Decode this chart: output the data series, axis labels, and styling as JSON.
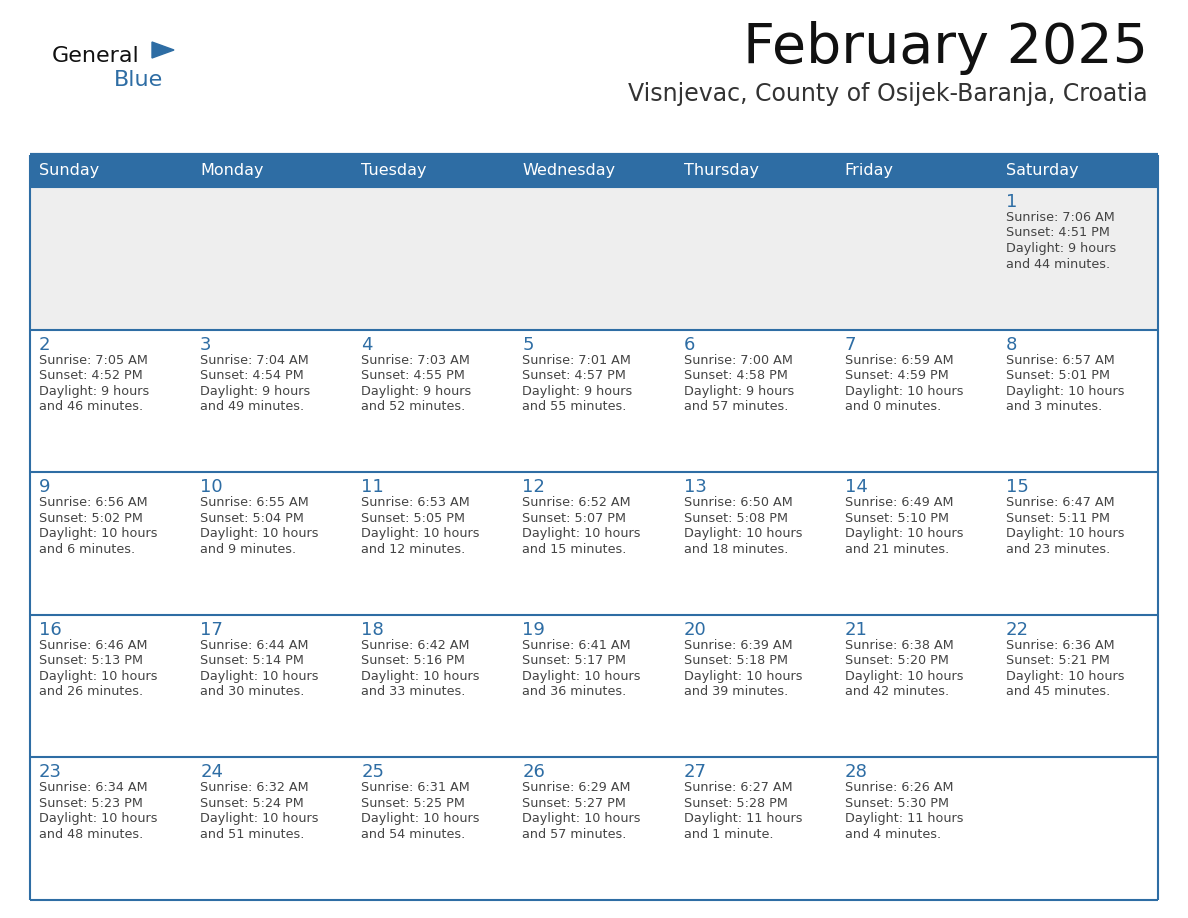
{
  "title": "February 2025",
  "subtitle": "Visnjevac, County of Osijek-Baranja, Croatia",
  "header_bg_color": "#2E6DA4",
  "header_text_color": "#FFFFFF",
  "row0_bg_color": "#EEEEEE",
  "row_bg_color": "#FFFFFF",
  "border_color": "#2E6DA4",
  "day_names": [
    "Sunday",
    "Monday",
    "Tuesday",
    "Wednesday",
    "Thursday",
    "Friday",
    "Saturday"
  ],
  "title_color": "#111111",
  "subtitle_color": "#333333",
  "day_number_color": "#2E6DA4",
  "info_color": "#444444",
  "logo_general_color": "#111111",
  "logo_blue_color": "#2E6DA4",
  "calendar": [
    [
      null,
      null,
      null,
      null,
      null,
      null,
      {
        "day": 1,
        "sunrise": "7:06 AM",
        "sunset": "4:51 PM",
        "daylight": "9 hours",
        "daylight2": "and 44 minutes."
      }
    ],
    [
      {
        "day": 2,
        "sunrise": "7:05 AM",
        "sunset": "4:52 PM",
        "daylight": "9 hours",
        "daylight2": "and 46 minutes."
      },
      {
        "day": 3,
        "sunrise": "7:04 AM",
        "sunset": "4:54 PM",
        "daylight": "9 hours",
        "daylight2": "and 49 minutes."
      },
      {
        "day": 4,
        "sunrise": "7:03 AM",
        "sunset": "4:55 PM",
        "daylight": "9 hours",
        "daylight2": "and 52 minutes."
      },
      {
        "day": 5,
        "sunrise": "7:01 AM",
        "sunset": "4:57 PM",
        "daylight": "9 hours",
        "daylight2": "and 55 minutes."
      },
      {
        "day": 6,
        "sunrise": "7:00 AM",
        "sunset": "4:58 PM",
        "daylight": "9 hours",
        "daylight2": "and 57 minutes."
      },
      {
        "day": 7,
        "sunrise": "6:59 AM",
        "sunset": "4:59 PM",
        "daylight": "10 hours",
        "daylight2": "and 0 minutes."
      },
      {
        "day": 8,
        "sunrise": "6:57 AM",
        "sunset": "5:01 PM",
        "daylight": "10 hours",
        "daylight2": "and 3 minutes."
      }
    ],
    [
      {
        "day": 9,
        "sunrise": "6:56 AM",
        "sunset": "5:02 PM",
        "daylight": "10 hours",
        "daylight2": "and 6 minutes."
      },
      {
        "day": 10,
        "sunrise": "6:55 AM",
        "sunset": "5:04 PM",
        "daylight": "10 hours",
        "daylight2": "and 9 minutes."
      },
      {
        "day": 11,
        "sunrise": "6:53 AM",
        "sunset": "5:05 PM",
        "daylight": "10 hours",
        "daylight2": "and 12 minutes."
      },
      {
        "day": 12,
        "sunrise": "6:52 AM",
        "sunset": "5:07 PM",
        "daylight": "10 hours",
        "daylight2": "and 15 minutes."
      },
      {
        "day": 13,
        "sunrise": "6:50 AM",
        "sunset": "5:08 PM",
        "daylight": "10 hours",
        "daylight2": "and 18 minutes."
      },
      {
        "day": 14,
        "sunrise": "6:49 AM",
        "sunset": "5:10 PM",
        "daylight": "10 hours",
        "daylight2": "and 21 minutes."
      },
      {
        "day": 15,
        "sunrise": "6:47 AM",
        "sunset": "5:11 PM",
        "daylight": "10 hours",
        "daylight2": "and 23 minutes."
      }
    ],
    [
      {
        "day": 16,
        "sunrise": "6:46 AM",
        "sunset": "5:13 PM",
        "daylight": "10 hours",
        "daylight2": "and 26 minutes."
      },
      {
        "day": 17,
        "sunrise": "6:44 AM",
        "sunset": "5:14 PM",
        "daylight": "10 hours",
        "daylight2": "and 30 minutes."
      },
      {
        "day": 18,
        "sunrise": "6:42 AM",
        "sunset": "5:16 PM",
        "daylight": "10 hours",
        "daylight2": "and 33 minutes."
      },
      {
        "day": 19,
        "sunrise": "6:41 AM",
        "sunset": "5:17 PM",
        "daylight": "10 hours",
        "daylight2": "and 36 minutes."
      },
      {
        "day": 20,
        "sunrise": "6:39 AM",
        "sunset": "5:18 PM",
        "daylight": "10 hours",
        "daylight2": "and 39 minutes."
      },
      {
        "day": 21,
        "sunrise": "6:38 AM",
        "sunset": "5:20 PM",
        "daylight": "10 hours",
        "daylight2": "and 42 minutes."
      },
      {
        "day": 22,
        "sunrise": "6:36 AM",
        "sunset": "5:21 PM",
        "daylight": "10 hours",
        "daylight2": "and 45 minutes."
      }
    ],
    [
      {
        "day": 23,
        "sunrise": "6:34 AM",
        "sunset": "5:23 PM",
        "daylight": "10 hours",
        "daylight2": "and 48 minutes."
      },
      {
        "day": 24,
        "sunrise": "6:32 AM",
        "sunset": "5:24 PM",
        "daylight": "10 hours",
        "daylight2": "and 51 minutes."
      },
      {
        "day": 25,
        "sunrise": "6:31 AM",
        "sunset": "5:25 PM",
        "daylight": "10 hours",
        "daylight2": "and 54 minutes."
      },
      {
        "day": 26,
        "sunrise": "6:29 AM",
        "sunset": "5:27 PM",
        "daylight": "10 hours",
        "daylight2": "and 57 minutes."
      },
      {
        "day": 27,
        "sunrise": "6:27 AM",
        "sunset": "5:28 PM",
        "daylight": "11 hours",
        "daylight2": "and 1 minute."
      },
      {
        "day": 28,
        "sunrise": "6:26 AM",
        "sunset": "5:30 PM",
        "daylight": "11 hours",
        "daylight2": "and 4 minutes."
      },
      null
    ]
  ]
}
